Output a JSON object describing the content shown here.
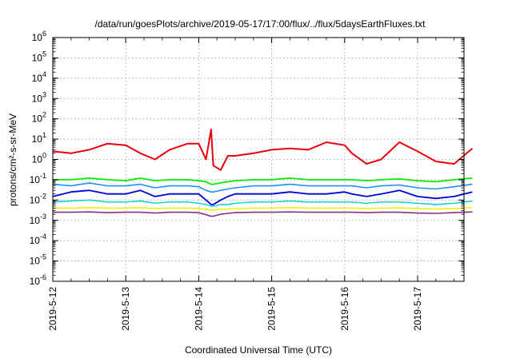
{
  "chart_data": {
    "type": "line",
    "title": "/data/run/goesPlots/archive/2019-05-17/17:00/flux/../flux/5daysEarthFluxes.txt",
    "xlabel": "Coordinated Universal Time (UTC)",
    "ylabel": "protons/cm²-s-sr-MeV",
    "yscale": "log",
    "ylim": [
      1e-06,
      1000000.0
    ],
    "xlim": [
      "2019-05-12 00:00",
      "2019-05-17 18:00"
    ],
    "x_ticks": [
      "2019-5-12",
      "2019-5-13",
      "2019-5-14",
      "2019-5-15",
      "2019-5-16",
      "2019-5-17"
    ],
    "y_ticks": [
      {
        "value": 1e-06,
        "base": "10",
        "exp": "-6"
      },
      {
        "value": 1e-05,
        "base": "10",
        "exp": "-5"
      },
      {
        "value": 0.0001,
        "base": "10",
        "exp": "-4"
      },
      {
        "value": 0.001,
        "base": "10",
        "exp": "-3"
      },
      {
        "value": 0.01,
        "base": "10",
        "exp": "-2"
      },
      {
        "value": 0.1,
        "base": "10",
        "exp": "-1"
      },
      {
        "value": 1.0,
        "base": "10",
        "exp": "0"
      },
      {
        "value": 10.0,
        "base": "10",
        "exp": "1"
      },
      {
        "value": 100.0,
        "base": "10",
        "exp": "2"
      },
      {
        "value": 1000.0,
        "base": "10",
        "exp": "3"
      },
      {
        "value": 10000.0,
        "base": "10",
        "exp": "4"
      },
      {
        "value": 100000.0,
        "base": "10",
        "exp": "5"
      },
      {
        "value": 1000000.0,
        "base": "10",
        "exp": "6"
      }
    ],
    "grid": true,
    "legend": "none",
    "x_days": [
      0,
      0.25,
      0.5,
      0.75,
      1,
      1.2,
      1.4,
      1.6,
      1.85,
      2,
      2.1,
      2.17,
      2.2,
      2.3,
      2.4,
      2.5,
      2.75,
      3,
      3.25,
      3.5,
      3.75,
      4,
      4.1,
      4.3,
      4.5,
      4.75,
      5,
      5.25,
      5.5,
      5.75
    ],
    "series": [
      {
        "color": "#e8000b",
        "width": 2.0,
        "values": [
          2.5,
          2.0,
          3.0,
          6.0,
          5.0,
          2.0,
          1.0,
          3.0,
          6.0,
          6.0,
          1.0,
          30.0,
          0.5,
          0.3,
          1.5,
          1.5,
          2.0,
          3.0,
          3.5,
          3.0,
          7.0,
          5.0,
          2.0,
          0.6,
          1.0,
          7.0,
          2.5,
          0.8,
          0.6,
          3.5
        ]
      },
      {
        "color": "#00ee00",
        "width": 1.8,
        "values": [
          0.1,
          0.1,
          0.12,
          0.1,
          0.09,
          0.12,
          0.09,
          0.1,
          0.1,
          0.09,
          0.08,
          0.06,
          0.06,
          0.07,
          0.08,
          0.09,
          0.1,
          0.1,
          0.12,
          0.1,
          0.1,
          0.1,
          0.1,
          0.09,
          0.1,
          0.11,
          0.09,
          0.08,
          0.1,
          0.12
        ]
      },
      {
        "color": "#1e90ff",
        "width": 1.6,
        "values": [
          0.06,
          0.05,
          0.07,
          0.05,
          0.05,
          0.06,
          0.04,
          0.05,
          0.05,
          0.045,
          0.03,
          0.025,
          0.025,
          0.03,
          0.035,
          0.04,
          0.05,
          0.05,
          0.06,
          0.05,
          0.05,
          0.05,
          0.05,
          0.04,
          0.05,
          0.055,
          0.04,
          0.035,
          0.045,
          0.06
        ]
      },
      {
        "color": "#0000dd",
        "width": 1.8,
        "values": [
          0.015,
          0.025,
          0.03,
          0.02,
          0.02,
          0.03,
          0.015,
          0.02,
          0.02,
          0.02,
          0.01,
          0.006,
          0.006,
          0.01,
          0.015,
          0.02,
          0.02,
          0.02,
          0.025,
          0.02,
          0.02,
          0.025,
          0.02,
          0.015,
          0.02,
          0.03,
          0.015,
          0.012,
          0.015,
          0.025
        ]
      },
      {
        "color": "#00ced1",
        "width": 1.4,
        "values": [
          0.008,
          0.009,
          0.01,
          0.008,
          0.008,
          0.009,
          0.007,
          0.008,
          0.008,
          0.007,
          0.006,
          0.005,
          0.005,
          0.006,
          0.006,
          0.007,
          0.008,
          0.008,
          0.009,
          0.008,
          0.008,
          0.008,
          0.008,
          0.007,
          0.008,
          0.008,
          0.007,
          0.006,
          0.007,
          0.009
        ]
      },
      {
        "color": "#f0f000",
        "width": 1.6,
        "values": [
          0.004,
          0.004,
          0.0042,
          0.004,
          0.004,
          0.0042,
          0.0038,
          0.004,
          0.004,
          0.0038,
          0.0035,
          0.0032,
          0.0032,
          0.0035,
          0.0036,
          0.0038,
          0.004,
          0.004,
          0.0042,
          0.004,
          0.004,
          0.004,
          0.004,
          0.0038,
          0.004,
          0.0041,
          0.0038,
          0.0036,
          0.0038,
          0.0042
        ]
      },
      {
        "color": "#8b2c8b",
        "width": 1.6,
        "values": [
          0.0025,
          0.0025,
          0.0026,
          0.0024,
          0.0025,
          0.0025,
          0.0023,
          0.0025,
          0.0025,
          0.0024,
          0.0019,
          0.0016,
          0.0016,
          0.002,
          0.0022,
          0.0024,
          0.0025,
          0.0025,
          0.0026,
          0.0025,
          0.0025,
          0.0025,
          0.0025,
          0.0024,
          0.0025,
          0.0025,
          0.0023,
          0.0022,
          0.0024,
          0.0026
        ]
      }
    ]
  }
}
